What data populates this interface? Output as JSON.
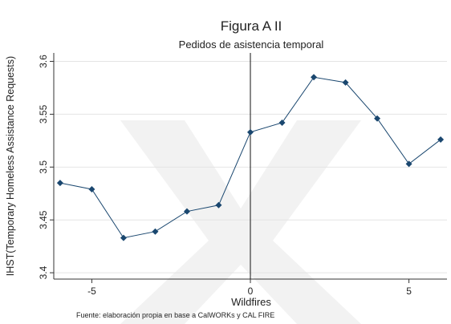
{
  "chart_data": {
    "type": "line",
    "title": "Figura A II",
    "subtitle": "Pedidos de asistencia temporal",
    "x_label": "Wildfires",
    "y_label": "IHST(Temporary Homeless Assistance Requests)",
    "source": "Fuente: elaboración propia en base a CalWORKs y CAL FIRE",
    "x": [
      -6,
      -5,
      -4,
      -3,
      -2,
      -1,
      0,
      1,
      2,
      3,
      4,
      5,
      6
    ],
    "series": [
      {
        "name": "IHST",
        "color": "#1a476f",
        "values": [
          3.485,
          3.479,
          3.433,
          3.439,
          3.458,
          3.464,
          3.533,
          3.542,
          3.585,
          3.58,
          3.546,
          3.503,
          3.526
        ]
      }
    ],
    "xlim": [
      -6.2,
      6.2
    ],
    "xticks": [
      -5,
      0,
      5
    ],
    "ylim": [
      3.394,
      3.608
    ],
    "yticks": [
      3.4,
      3.45,
      3.5,
      3.55,
      3.6
    ],
    "vline": 0,
    "grid": true
  }
}
